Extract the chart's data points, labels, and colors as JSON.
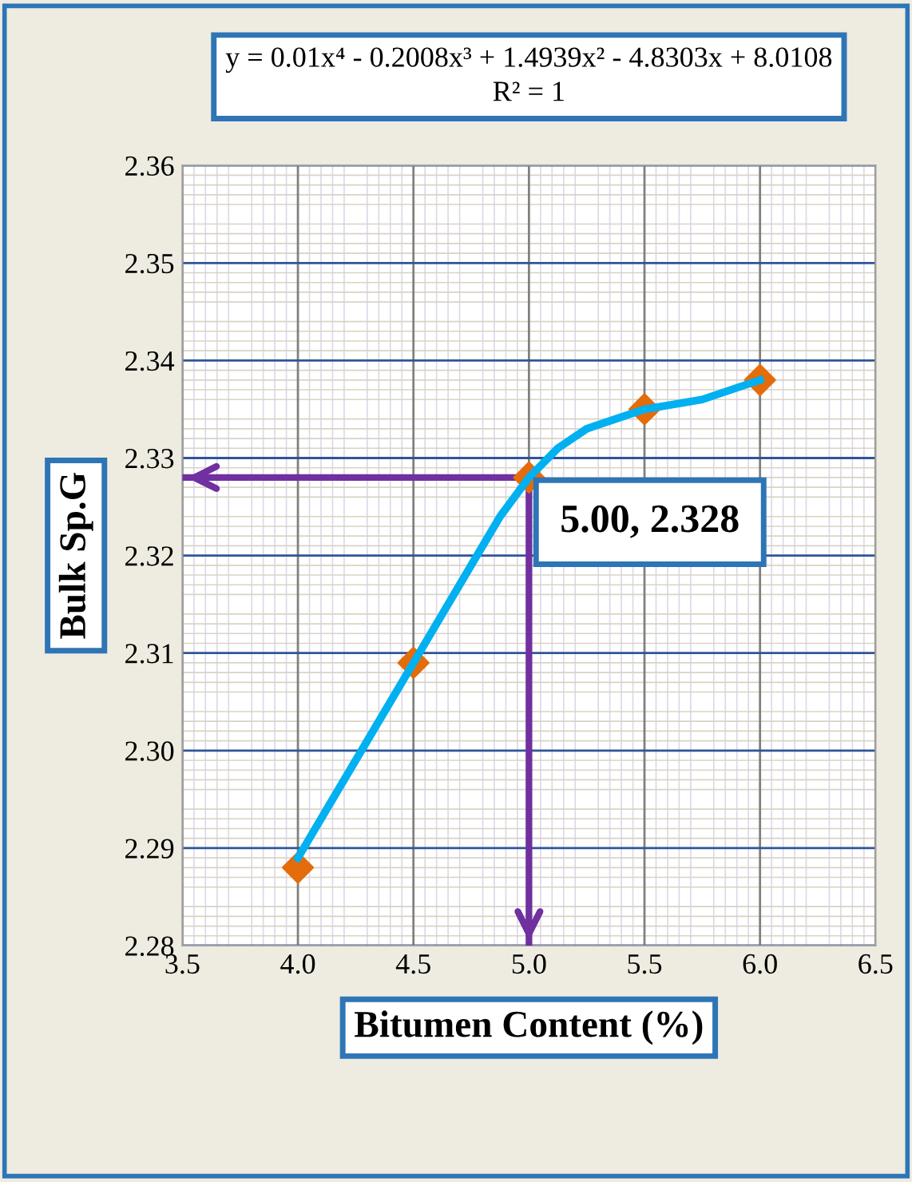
{
  "chart_data": {
    "type": "scatter",
    "xlabel": "Bitumen Content (%)",
    "ylabel": "Bulk Sp.G",
    "annotations": [
      "y = 0.01x⁴ - 0.2008x³ + 1.4939x² - 4.8303x + 8.0108\nR² = 1",
      {
        "text": "5.00, 2.328",
        "x": 5.0,
        "y": 2.328
      }
    ],
    "series": [
      {
        "type": "line",
        "color": "#00b0f0",
        "x": [
          4.0,
          4.125,
          4.25,
          4.375,
          4.5,
          4.625,
          4.75,
          4.875,
          5.0,
          5.125,
          5.25,
          5.375,
          5.5,
          5.75,
          6.0
        ],
        "values": [
          2.289,
          2.294,
          2.299,
          2.304,
          2.309,
          2.314,
          2.319,
          2.324,
          2.328,
          2.331,
          2.333,
          2.334,
          2.335,
          2.336,
          2.338
        ],
        "marker": "none"
      },
      {
        "type": "scatter",
        "color": "#e46c0a",
        "x": [
          4.0,
          4.5,
          5.0,
          5.5,
          6.0
        ],
        "values": [
          2.288,
          2.309,
          2.328,
          2.335,
          2.338
        ],
        "marker": "diamond"
      }
    ],
    "ref_lines": [
      {
        "axis": "y",
        "value": 2.328,
        "color": "#7030a0"
      },
      {
        "axis": "x",
        "value": 5.0,
        "color": "#7030a0"
      }
    ],
    "xlim": [
      3.5,
      6.5
    ],
    "xticks": [
      3.5,
      {
        "value": 4,
        "label": "4.0"
      },
      4.5,
      {
        "value": 5,
        "label": "5.0"
      },
      5.5,
      {
        "value": 6,
        "label": "6.0"
      },
      6.5
    ],
    "ylim": [
      2.28,
      2.36
    ],
    "yticks": [
      2.28,
      2.29,
      {
        "value": 2.3,
        "label": "2.30"
      },
      2.31,
      2.32,
      2.33,
      2.34,
      2.35,
      2.36
    ],
    "grid": true
  }
}
